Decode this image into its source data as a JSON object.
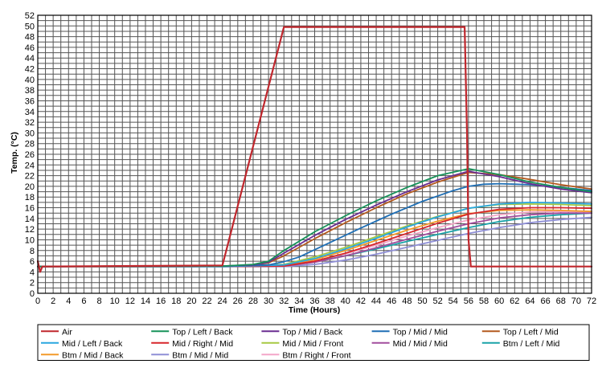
{
  "chart_data": {
    "type": "line",
    "title": "",
    "xlabel": "Time (Hours)",
    "ylabel": "Temp. (°C)",
    "xlim": [
      0,
      72
    ],
    "ylim": [
      0,
      52
    ],
    "x_ticks": [
      0,
      2,
      4,
      6,
      8,
      10,
      12,
      14,
      16,
      18,
      20,
      22,
      24,
      26,
      28,
      30,
      32,
      34,
      36,
      38,
      40,
      42,
      44,
      46,
      48,
      50,
      52,
      54,
      56,
      58,
      60,
      62,
      64,
      66,
      68,
      70,
      72
    ],
    "y_ticks": [
      0,
      2,
      4,
      6,
      8,
      10,
      12,
      14,
      16,
      18,
      20,
      22,
      24,
      26,
      28,
      30,
      32,
      34,
      36,
      38,
      40,
      42,
      44,
      46,
      48,
      50,
      52
    ],
    "grid": true,
    "legend_position": "bottom",
    "series": [
      {
        "name": "Air",
        "color": "#c0272d",
        "x": [
          0,
          0.3,
          0.6,
          24,
          32,
          55.5,
          55.8,
          56,
          56.3,
          60,
          72
        ],
        "y": [
          6,
          4,
          5,
          5.2,
          49.8,
          49.8,
          30,
          10,
          5,
          5,
          5
        ]
      },
      {
        "name": "Top / Left / Back",
        "color": "#17925a",
        "x": [
          0,
          24,
          28,
          30,
          32,
          36,
          40,
          44,
          48,
          52,
          56,
          60,
          64,
          68,
          72
        ],
        "y": [
          5,
          5.1,
          5.4,
          6,
          8,
          11.5,
          14.5,
          17.3,
          19.8,
          22,
          23.3,
          22.2,
          20.8,
          19.8,
          19
        ]
      },
      {
        "name": "Top / Mid / Back",
        "color": "#6a2d91",
        "x": [
          0,
          24,
          28,
          30,
          32,
          36,
          40,
          44,
          48,
          52,
          56,
          60,
          64,
          68,
          72
        ],
        "y": [
          5,
          5.1,
          5.3,
          5.8,
          7.5,
          10.8,
          13.8,
          16.5,
          19,
          21.2,
          22.8,
          21.8,
          20.5,
          19.5,
          18.8
        ]
      },
      {
        "name": "Top / Mid / Mid",
        "color": "#1f6fb5",
        "x": [
          0,
          24,
          30,
          32,
          34,
          38,
          42,
          46,
          50,
          54,
          56,
          58,
          60,
          64,
          68,
          72
        ],
        "y": [
          5,
          5.1,
          5.3,
          5.9,
          6.8,
          9.5,
          12.2,
          14.8,
          17.2,
          19.2,
          20,
          20.4,
          20.5,
          20.3,
          19.8,
          19.2
        ]
      },
      {
        "name": "Top / Left / Mid",
        "color": "#b35a1f",
        "x": [
          0,
          24,
          28,
          30,
          32,
          36,
          40,
          44,
          48,
          52,
          56,
          60,
          64,
          68,
          72
        ],
        "y": [
          5,
          5.1,
          5.3,
          5.7,
          7,
          10.2,
          13.2,
          16,
          18.6,
          20.8,
          22.6,
          22.2,
          21.3,
          20.3,
          19.5
        ]
      },
      {
        "name": "Mid / Left / Back",
        "color": "#2aa7df",
        "x": [
          0,
          24,
          32,
          36,
          40,
          44,
          48,
          52,
          56,
          60,
          64,
          68,
          72
        ],
        "y": [
          5,
          5,
          5.3,
          6.5,
          8.3,
          10.3,
          12.4,
          14.3,
          15.9,
          16.7,
          17,
          16.9,
          16.7
        ]
      },
      {
        "name": "Mid / Right / Mid",
        "color": "#d7262b",
        "x": [
          0,
          24,
          32,
          36,
          40,
          44,
          48,
          52,
          56,
          60,
          64,
          68,
          72
        ],
        "y": [
          5,
          5,
          5.1,
          6,
          7.5,
          9.3,
          11.2,
          13.1,
          14.8,
          15.7,
          16,
          16,
          15.9
        ]
      },
      {
        "name": "Mid / Mid / Front",
        "color": "#a7c942",
        "x": [
          0,
          24,
          32,
          36,
          40,
          44,
          48,
          52,
          56,
          60,
          64,
          68,
          72
        ],
        "y": [
          5,
          5,
          5.4,
          6.8,
          8.6,
          10.6,
          12.6,
          14.4,
          15.9,
          16.6,
          16.7,
          16.6,
          16.4
        ]
      },
      {
        "name": "Mid / Mid / Mid",
        "color": "#a24d9d",
        "x": [
          0,
          24,
          32,
          36,
          40,
          44,
          48,
          52,
          56,
          60,
          64,
          68,
          72
        ],
        "y": [
          5,
          5,
          5.1,
          5.8,
          7,
          8.5,
          10.1,
          11.6,
          13,
          14.1,
          14.7,
          15,
          15
        ]
      },
      {
        "name": "Btm / Left / Mid",
        "color": "#1aa3a8",
        "x": [
          0,
          24,
          32,
          36,
          40,
          44,
          48,
          52,
          56,
          60,
          64,
          68,
          72
        ],
        "y": [
          5,
          5,
          5.1,
          5.9,
          7,
          8.3,
          9.7,
          11,
          12.3,
          13.4,
          14.2,
          14.7,
          15
        ]
      },
      {
        "name": "Btm / Mid / Back",
        "color": "#f39a2a",
        "x": [
          0,
          24,
          32,
          36,
          40,
          44,
          48,
          52,
          56,
          60,
          64,
          68,
          72
        ],
        "y": [
          5,
          5,
          5.2,
          6.3,
          8,
          9.9,
          11.8,
          13.5,
          14.9,
          15.5,
          15.6,
          15.5,
          15.3
        ]
      },
      {
        "name": "Btm / Mid / Mid",
        "color": "#8f8fd6",
        "x": [
          0,
          24,
          32,
          36,
          40,
          44,
          48,
          52,
          56,
          60,
          64,
          68,
          72
        ],
        "y": [
          5,
          5,
          5,
          5.4,
          6.2,
          7.3,
          8.6,
          9.9,
          11.2,
          12.3,
          13.2,
          13.8,
          14.2
        ]
      },
      {
        "name": "Btm / Right / Front",
        "color": "#f4a6c8",
        "x": [
          0,
          24,
          32,
          36,
          40,
          44,
          48,
          52,
          56,
          60,
          64,
          68,
          72
        ],
        "y": [
          5,
          5,
          5.1,
          6,
          7.4,
          9,
          10.7,
          12.3,
          13.7,
          14.7,
          15.2,
          15.3,
          15.3
        ]
      }
    ]
  }
}
